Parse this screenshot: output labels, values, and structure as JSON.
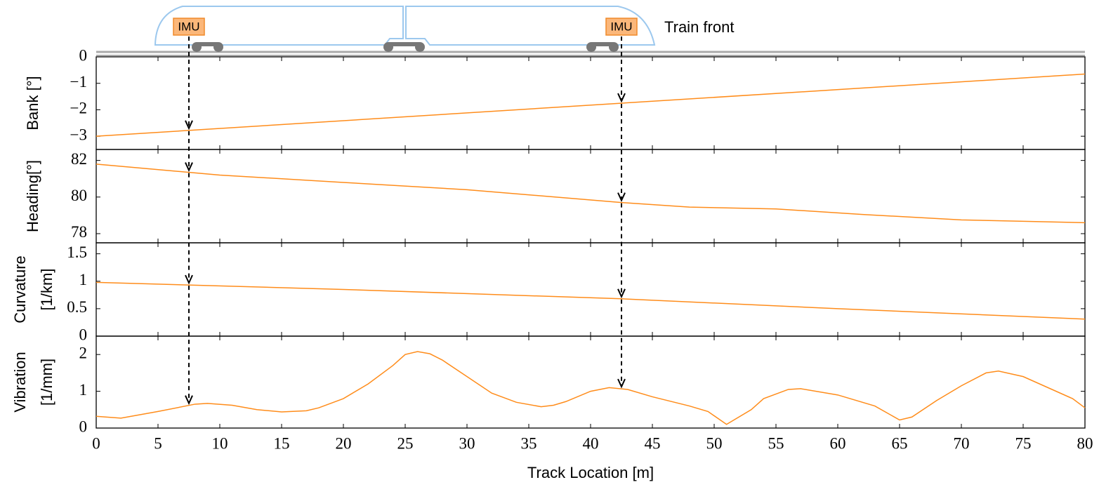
{
  "chart_data": [
    {
      "type": "line",
      "ylabel": [
        "Bank [°]"
      ],
      "color": "#ff8c1a",
      "annotations": [
        {
          "text": "IMU",
          "x": 7.5
        },
        {
          "text": "IMU",
          "x": 42.5
        },
        {
          "text": "Train front"
        }
      ],
      "x": [
        0,
        80
      ],
      "values": [
        -3.0,
        -0.65
      ],
      "ylim": [
        -3.5,
        0
      ],
      "yticks": [
        {
          "value": -3,
          "label": "−3"
        },
        {
          "value": -2,
          "label": "−2"
        },
        {
          "value": -1,
          "label": "−1"
        },
        0
      ]
    },
    {
      "type": "line",
      "ylabel": [
        "Heading[°]"
      ],
      "color": "#ff8c1a",
      "x": [
        0,
        10,
        20,
        30,
        42.5,
        48,
        55,
        62,
        70,
        80
      ],
      "values": [
        81.8,
        81.2,
        80.8,
        80.4,
        79.7,
        79.45,
        79.35,
        79.05,
        78.75,
        78.6
      ],
      "ylim": [
        77.5,
        82.6
      ],
      "yticks": [
        78,
        80,
        82
      ]
    },
    {
      "type": "line",
      "ylabel": [
        "Curvature",
        "[1/km]"
      ],
      "color": "#ff8c1a",
      "x": [
        0,
        20,
        42.5,
        60,
        80
      ],
      "values": [
        0.98,
        0.85,
        0.68,
        0.5,
        0.31
      ],
      "ylim": [
        0,
        1.7
      ],
      "yticks": [
        0,
        0.5,
        1,
        1.5
      ]
    },
    {
      "type": "line",
      "ylabel": [
        "Vibration",
        "[1/mm]"
      ],
      "color": "#ff8c1a",
      "x": [
        0,
        2,
        5,
        8,
        9,
        11,
        13,
        15,
        17,
        18,
        20,
        22,
        24,
        25,
        26,
        27,
        28,
        30,
        32,
        34,
        36,
        37,
        38,
        40,
        41.5,
        43,
        45,
        48,
        49.5,
        51,
        53,
        54,
        56,
        57,
        60,
        63,
        65,
        66,
        68,
        70,
        72,
        73,
        75,
        79,
        80
      ],
      "values": [
        0.32,
        0.27,
        0.45,
        0.65,
        0.67,
        0.62,
        0.5,
        0.44,
        0.47,
        0.55,
        0.8,
        1.2,
        1.7,
        2.0,
        2.08,
        2.02,
        1.85,
        1.4,
        0.95,
        0.7,
        0.58,
        0.62,
        0.72,
        1.0,
        1.1,
        1.05,
        0.85,
        0.6,
        0.45,
        0.1,
        0.5,
        0.8,
        1.05,
        1.07,
        0.9,
        0.6,
        0.22,
        0.3,
        0.75,
        1.15,
        1.5,
        1.55,
        1.4,
        0.8,
        0.55
      ],
      "ylim": [
        0,
        2.5
      ],
      "yticks": [
        0,
        1,
        2
      ],
      "xlabel": "Track Location [m]",
      "xlim": [
        0,
        80
      ],
      "xticks": [
        0,
        5,
        10,
        15,
        20,
        25,
        30,
        35,
        40,
        45,
        50,
        55,
        60,
        65,
        70,
        75,
        80
      ]
    }
  ]
}
